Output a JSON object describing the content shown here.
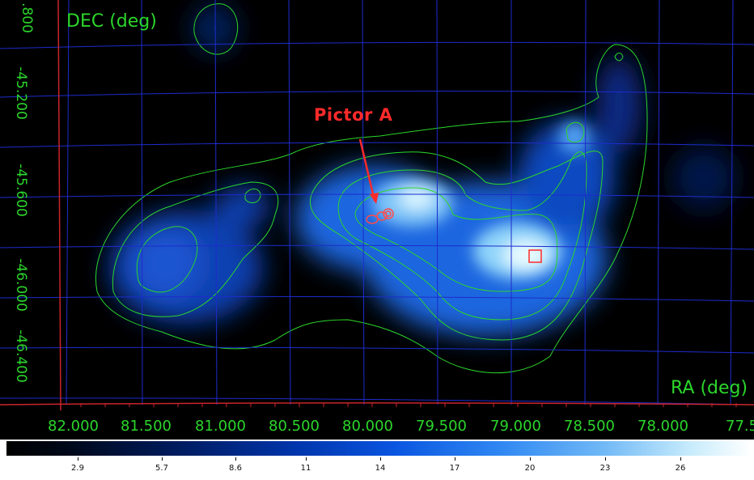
{
  "axes": {
    "dec_title": "DEC (deg)",
    "ra_title": "RA (deg)",
    "dec_ticks": [
      ".800",
      "-45.200",
      "-45.600",
      "-46.000",
      "-46.400"
    ],
    "ra_ticks": [
      "82.000",
      "81.500",
      "81.000",
      "80.500",
      "80.000",
      "79.500",
      "79.000",
      "78.500",
      "78.000",
      "77.5"
    ]
  },
  "annotation": {
    "label": "Pictor A"
  },
  "colorbar": {
    "ticks": [
      "2.9",
      "5.7",
      "8.6",
      "11",
      "14",
      "17",
      "20",
      "23",
      "26"
    ]
  },
  "colors": {
    "label_green": "#2bd62b",
    "annotation_red": "#ff2a2a",
    "grid_blue": "#1d2ccc",
    "axis_red": "#c8242c"
  }
}
